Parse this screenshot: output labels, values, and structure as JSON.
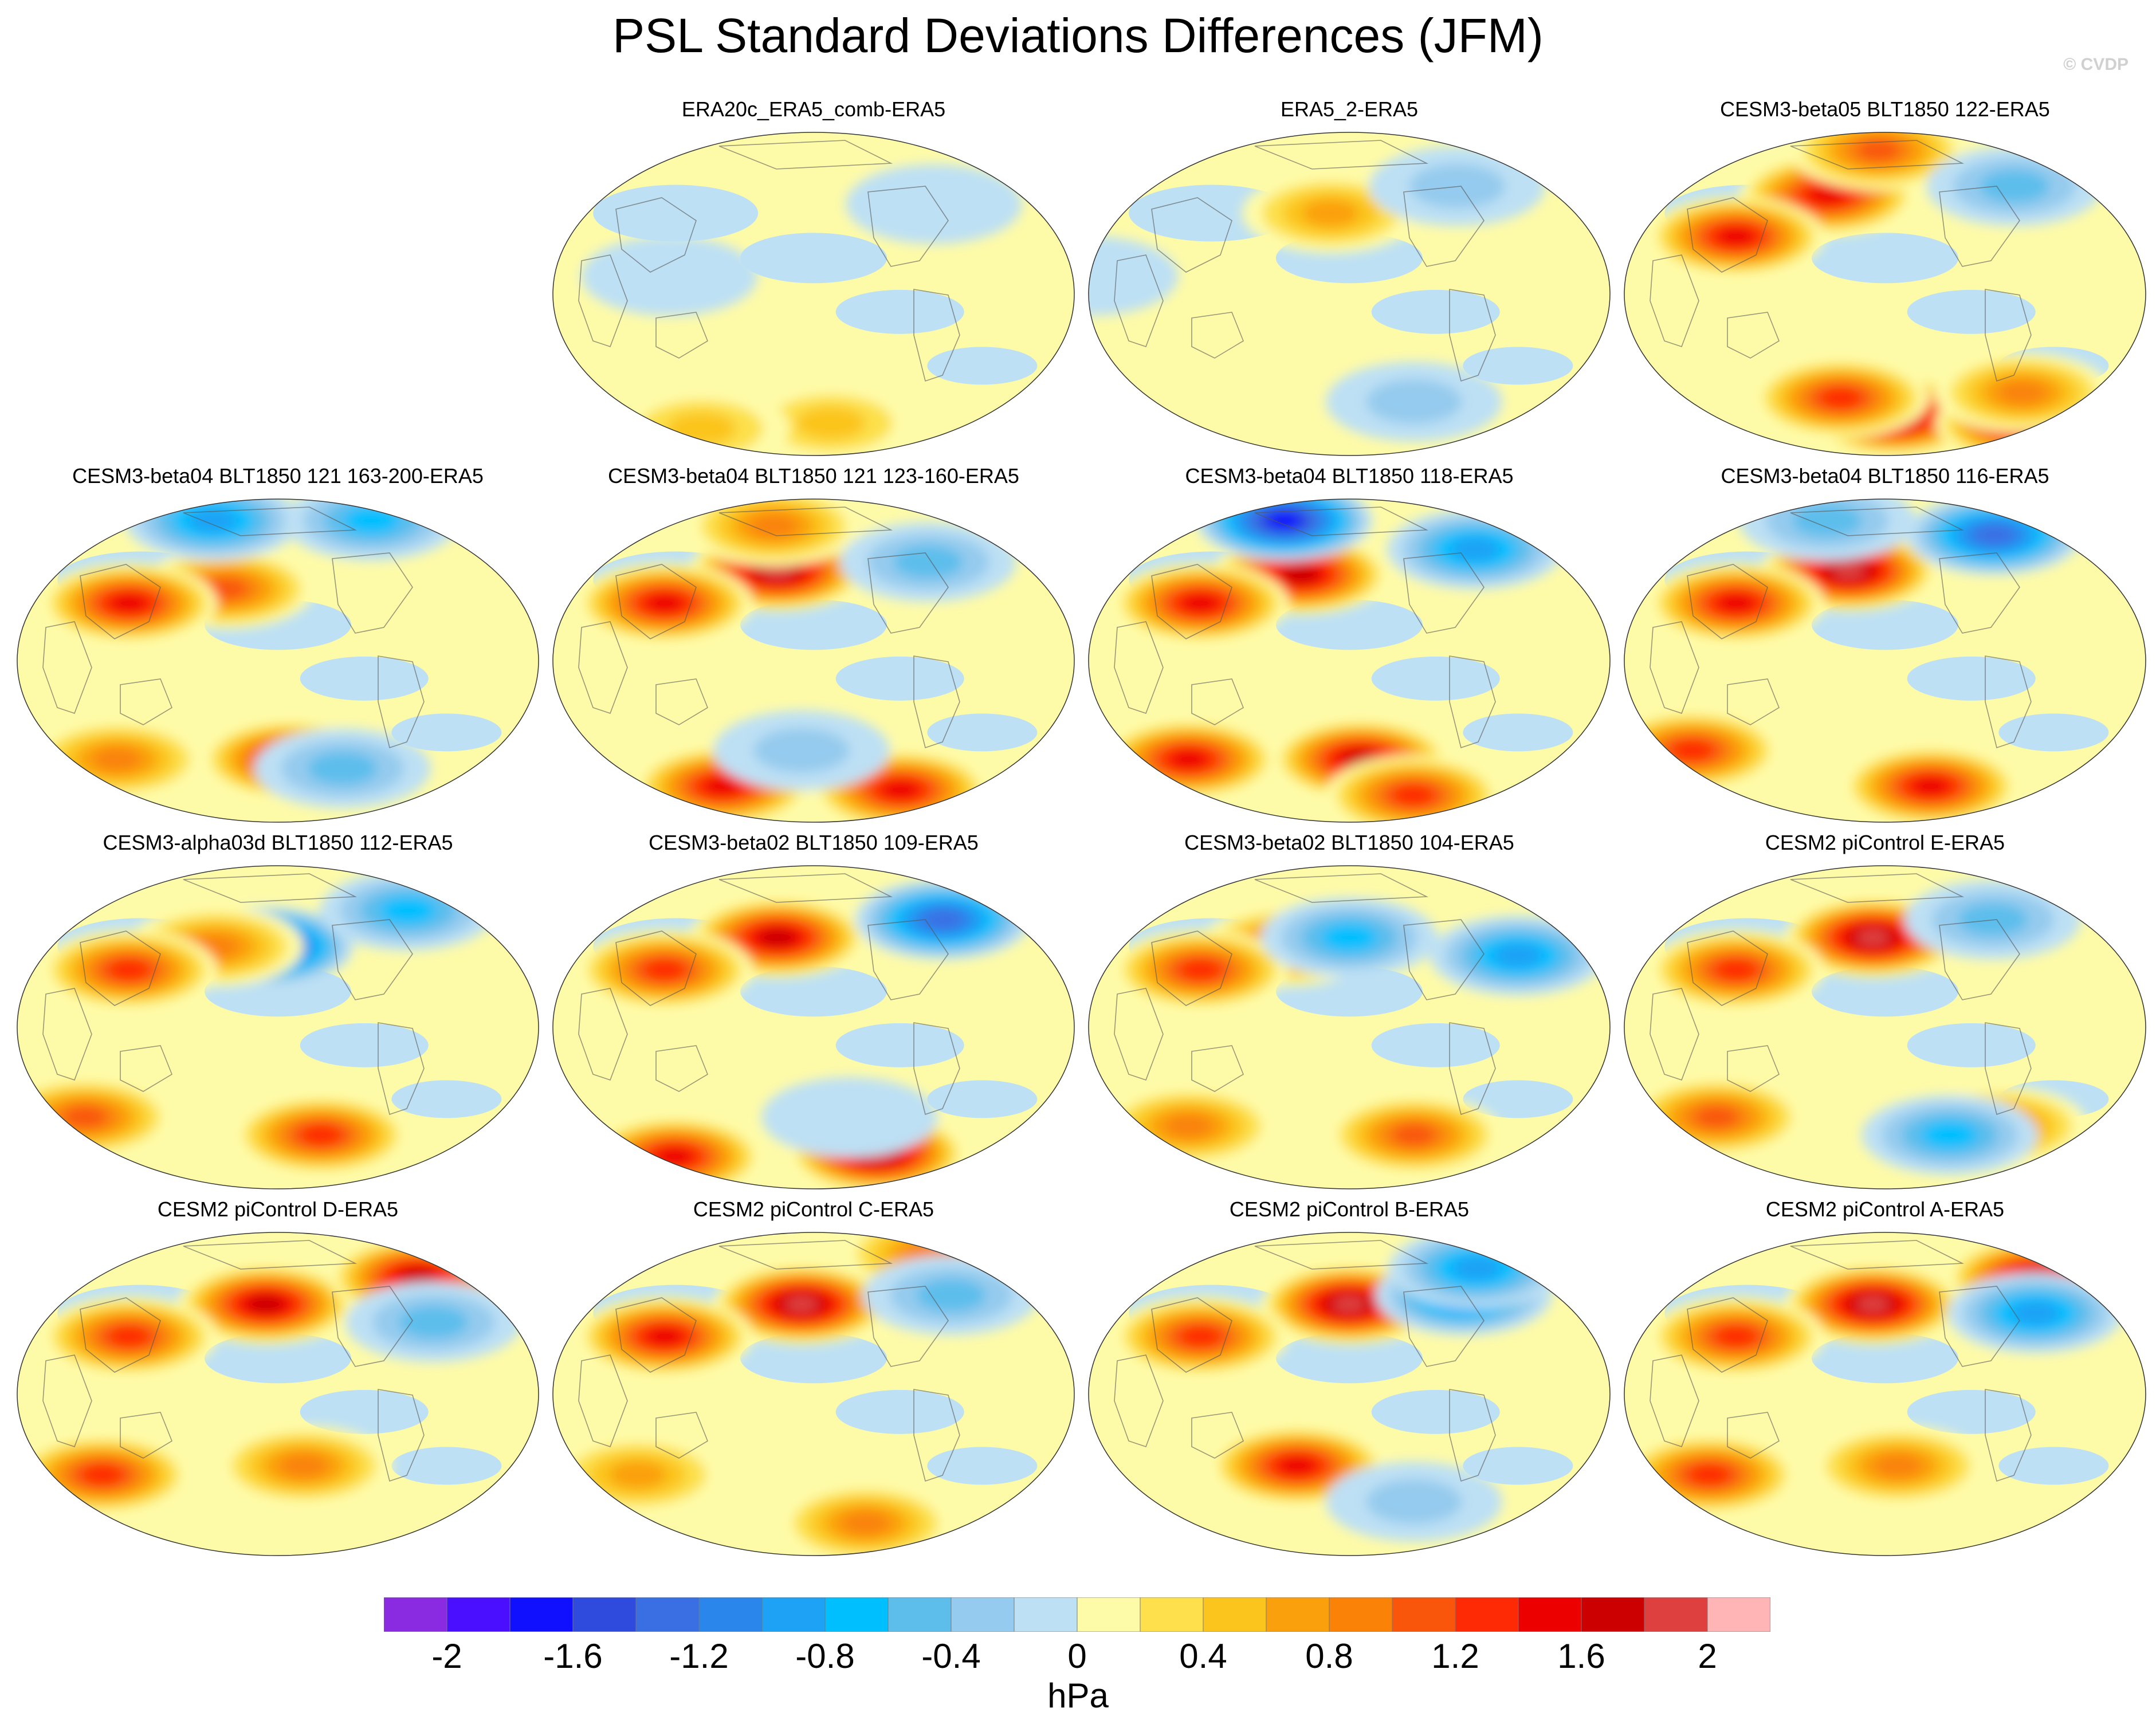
{
  "title": "PSL Standard Deviations Differences (JFM)",
  "copyright": "© CVDP",
  "units": "hPa",
  "panels": [
    {
      "title": "ERA20c_ERA5_comb-ERA5",
      "blobs": [
        {
          "lon": -140,
          "lat": -72,
          "v": 0.7
        },
        {
          "lon": 60,
          "lat": -75,
          "v": 0.6
        },
        {
          "lon": -60,
          "lat": 50,
          "v": -0.2
        },
        {
          "lon": 100,
          "lat": 10,
          "v": -0.2
        }
      ]
    },
    {
      "title": "ERA5_2-ERA5",
      "blobs": [
        {
          "lon": -175,
          "lat": 45,
          "v": 0.8
        },
        {
          "lon": -60,
          "lat": 60,
          "v": -0.4
        },
        {
          "lon": 20,
          "lat": 10,
          "v": -0.2
        },
        {
          "lon": -100,
          "lat": -60,
          "v": -0.4
        }
      ]
    },
    {
      "title": "CESM3-beta05 BLT1850 122-ERA5",
      "blobs": [
        {
          "lon": 150,
          "lat": 55,
          "v": 1.5
        },
        {
          "lon": -170,
          "lat": 80,
          "v": 1.2
        },
        {
          "lon": 90,
          "lat": 32,
          "v": 1.6
        },
        {
          "lon": -150,
          "lat": -68,
          "v": 2.0
        },
        {
          "lon": 0,
          "lat": -72,
          "v": 1.7
        },
        {
          "lon": 160,
          "lat": -58,
          "v": 1.3
        },
        {
          "lon": -40,
          "lat": -55,
          "v": 1.0
        },
        {
          "lon": -40,
          "lat": 60,
          "v": -0.6
        }
      ]
    },
    {
      "title": "CESM3-beta04 BLT1850 121 163-200-ERA5",
      "blobs": [
        {
          "lon": 160,
          "lat": 40,
          "v": 1.1
        },
        {
          "lon": 90,
          "lat": 32,
          "v": 1.6
        },
        {
          "lon": -150,
          "lat": -55,
          "v": 1.5
        },
        {
          "lon": 60,
          "lat": -55,
          "v": 1.0
        },
        {
          "lon": -100,
          "lat": -60,
          "v": -0.7
        },
        {
          "lon": 110,
          "lat": 78,
          "v": -1.0
        },
        {
          "lon": -30,
          "lat": 78,
          "v": -0.8
        }
      ]
    },
    {
      "title": "CESM3-beta04 BLT1850 121 123-160-ERA5",
      "blobs": [
        {
          "lon": 170,
          "lat": 50,
          "v": 2.0
        },
        {
          "lon": 90,
          "lat": 32,
          "v": 1.5
        },
        {
          "lon": -60,
          "lat": -72,
          "v": 1.6
        },
        {
          "lon": 100,
          "lat": -70,
          "v": 1.5
        },
        {
          "lon": 150,
          "lat": 75,
          "v": 1.0
        },
        {
          "lon": -60,
          "lat": 55,
          "v": -0.6
        },
        {
          "lon": -170,
          "lat": -50,
          "v": -0.4
        }
      ]
    },
    {
      "title": "CESM3-beta04 BLT1850 118-ERA5",
      "blobs": [
        {
          "lon": 160,
          "lat": 48,
          "v": 1.7
        },
        {
          "lon": 90,
          "lat": 32,
          "v": 1.5
        },
        {
          "lon": -150,
          "lat": -55,
          "v": 1.8
        },
        {
          "lon": 60,
          "lat": -55,
          "v": 1.5
        },
        {
          "lon": -80,
          "lat": -75,
          "v": 1.4
        },
        {
          "lon": 110,
          "lat": 78,
          "v": -1.8
        },
        {
          "lon": -40,
          "lat": 62,
          "v": -1.0
        }
      ]
    },
    {
      "title": "CESM3-beta04 BLT1850 116-ERA5",
      "blobs": [
        {
          "lon": 170,
          "lat": 50,
          "v": 2.0
        },
        {
          "lon": 90,
          "lat": 32,
          "v": 1.5
        },
        {
          "lon": -110,
          "lat": -70,
          "v": 1.6
        },
        {
          "lon": 40,
          "lat": -50,
          "v": 1.3
        },
        {
          "lon": -40,
          "lat": 70,
          "v": -1.3
        },
        {
          "lon": 120,
          "lat": 78,
          "v": -0.6
        }
      ]
    },
    {
      "title": "CESM3-alpha03d BLT1850 112-ERA5",
      "blobs": [
        {
          "lon": -170,
          "lat": 45,
          "v": -1.7
        },
        {
          "lon": 150,
          "lat": 45,
          "v": 0.9
        },
        {
          "lon": 90,
          "lat": 32,
          "v": 1.4
        },
        {
          "lon": -120,
          "lat": -60,
          "v": 1.3
        },
        {
          "lon": 40,
          "lat": -50,
          "v": 1.1
        },
        {
          "lon": -30,
          "lat": 65,
          "v": -0.8
        }
      ]
    },
    {
      "title": "CESM3-beta02 BLT1850 109-ERA5",
      "blobs": [
        {
          "lon": 170,
          "lat": 50,
          "v": 1.8
        },
        {
          "lon": 90,
          "lat": 32,
          "v": 1.4
        },
        {
          "lon": -90,
          "lat": -70,
          "v": 2.0
        },
        {
          "lon": 40,
          "lat": -72,
          "v": 1.5
        },
        {
          "lon": -40,
          "lat": 60,
          "v": -1.3
        },
        {
          "lon": -130,
          "lat": -50,
          "v": -0.3
        }
      ]
    },
    {
      "title": "CESM3-beta02 BLT1850 104-ERA5",
      "blobs": [
        {
          "lon": 150,
          "lat": 45,
          "v": 1.2
        },
        {
          "lon": 90,
          "lat": 32,
          "v": 1.4
        },
        {
          "lon": -100,
          "lat": -60,
          "v": 1.2
        },
        {
          "lon": 60,
          "lat": -55,
          "v": 1.0
        },
        {
          "lon": -30,
          "lat": 40,
          "v": -1.0
        },
        {
          "lon": -160,
          "lat": 50,
          "v": -0.8
        }
      ]
    },
    {
      "title": "CESM2 piControl E-ERA5",
      "blobs": [
        {
          "lon": -170,
          "lat": 50,
          "v": 2.0
        },
        {
          "lon": 90,
          "lat": 32,
          "v": 1.4
        },
        {
          "lon": 60,
          "lat": -50,
          "v": 1.1
        },
        {
          "lon": -60,
          "lat": -55,
          "v": 0.9
        },
        {
          "lon": -60,
          "lat": 60,
          "v": -0.6
        },
        {
          "lon": -100,
          "lat": -60,
          "v": -0.8
        }
      ]
    },
    {
      "title": "CESM2 piControl D-ERA5",
      "blobs": [
        {
          "lon": -170,
          "lat": 50,
          "v": 1.9
        },
        {
          "lon": -20,
          "lat": 65,
          "v": 1.8
        },
        {
          "lon": 90,
          "lat": 32,
          "v": 1.4
        },
        {
          "lon": 60,
          "lat": -45,
          "v": 1.3
        },
        {
          "lon": -140,
          "lat": -40,
          "v": 1.0
        },
        {
          "lon": -40,
          "lat": 40,
          "v": -0.5
        }
      ]
    },
    {
      "title": "CESM2 piControl C-ERA5",
      "blobs": [
        {
          "lon": -170,
          "lat": 50,
          "v": 2.0
        },
        {
          "lon": 90,
          "lat": 32,
          "v": 1.5
        },
        {
          "lon": 0,
          "lat": 78,
          "v": 1.0
        },
        {
          "lon": -100,
          "lat": -72,
          "v": 1.0
        },
        {
          "lon": -40,
          "lat": 55,
          "v": -0.6
        },
        {
          "lon": 60,
          "lat": -45,
          "v": 0.8
        }
      ]
    },
    {
      "title": "CESM2 piControl B-ERA5",
      "blobs": [
        {
          "lon": -160,
          "lat": 50,
          "v": 2.0
        },
        {
          "lon": 90,
          "lat": 32,
          "v": 1.4
        },
        {
          "lon": 160,
          "lat": -40,
          "v": 1.5
        },
        {
          "lon": -60,
          "lat": 55,
          "v": -1.2
        },
        {
          "lon": -20,
          "lat": 70,
          "v": -0.9
        },
        {
          "lon": -100,
          "lat": -60,
          "v": -0.4
        }
      ]
    },
    {
      "title": "CESM2 piControl A-ERA5",
      "blobs": [
        {
          "lon": -170,
          "lat": 50,
          "v": 2.0
        },
        {
          "lon": -10,
          "lat": 65,
          "v": 1.9
        },
        {
          "lon": 90,
          "lat": 32,
          "v": 1.4
        },
        {
          "lon": 60,
          "lat": -45,
          "v": 1.3
        },
        {
          "lon": -150,
          "lat": -40,
          "v": 1.0
        },
        {
          "lon": -40,
          "lat": 45,
          "v": -0.9
        }
      ]
    }
  ],
  "colorbar": {
    "colors": [
      "#8a2be2",
      "#4b0fff",
      "#1010ff",
      "#2f4bdd",
      "#3a6fe4",
      "#2b86ec",
      "#1ea2f5",
      "#00bfff",
      "#5dbeec",
      "#95cbee",
      "#bde0f4",
      "#fefba8",
      "#fde04c",
      "#fcc51e",
      "#fba00d",
      "#fa8307",
      "#f9560b",
      "#fe2a06",
      "#ed0000",
      "#cc0000",
      "#de4040",
      "#ffb5b5"
    ],
    "labels": [
      "-2",
      "-1.6",
      "-1.2",
      "-0.8",
      "-0.4",
      "0",
      "0.4",
      "0.8",
      "1.2",
      "1.6",
      "2"
    ],
    "levels": [
      -2,
      -1.8,
      -1.6,
      -1.4,
      -1.2,
      -1,
      -0.8,
      -0.6,
      -0.4,
      -0.2,
      0,
      0.2,
      0.4,
      0.6,
      0.8,
      1,
      1.2,
      1.4,
      1.6,
      1.8,
      2
    ]
  }
}
